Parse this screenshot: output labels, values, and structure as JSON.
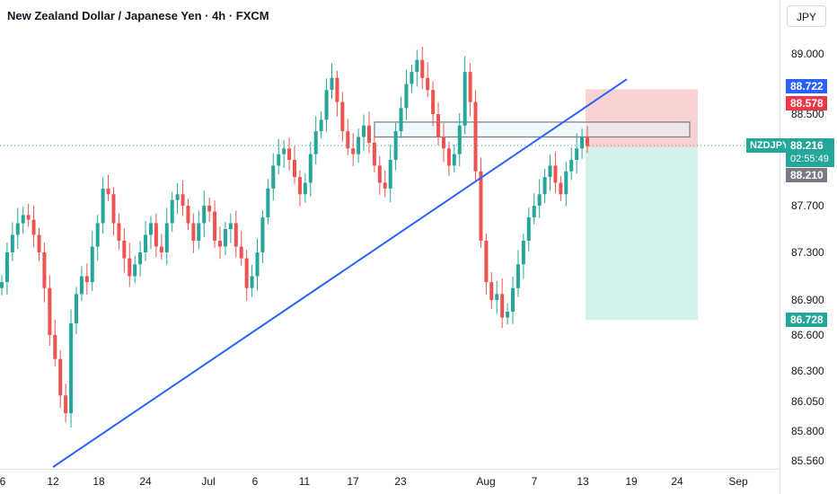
{
  "header": {
    "title": "New Zealand Dollar / Japanese Yen · 4h · FXCM"
  },
  "price_axis": {
    "currency": "JPY",
    "ticks": [
      "89.000",
      "88.500",
      "87.700",
      "87.300",
      "86.900",
      "86.600",
      "86.300",
      "86.050",
      "85.800",
      "85.560"
    ]
  },
  "time_axis": {
    "ticks": [
      "6",
      "12",
      "18",
      "24",
      "Jul",
      "6",
      "11",
      "17",
      "23",
      "Aug",
      "7",
      "13",
      "19",
      "24",
      "Sep"
    ]
  },
  "labels": {
    "symbol": "NZDJPY",
    "current_price": "88.216",
    "countdown": "02:55:49",
    "stop_price": "88.722",
    "entry_high": "88.578",
    "entry_price": "88.210",
    "target_price": "86.728"
  },
  "colors": {
    "up": "#26a69a",
    "down": "#ef5350",
    "trendline": "#2962ff",
    "risk_zone": "#f7c3c3",
    "reward_zone": "#cdeee8",
    "blue_badge": "#2962ff",
    "red_badge": "#f23645",
    "gray_badge": "#787b86"
  },
  "chart_data": {
    "type": "candlestick",
    "symbol": "NZDJPY",
    "timeframe": "4h",
    "y_scale": "log",
    "ylim": [
      85.5,
      89.4
    ],
    "close_series": [
      87.05,
      87.3,
      87.45,
      87.55,
      87.62,
      87.58,
      87.45,
      87.3,
      87.0,
      86.6,
      86.4,
      86.1,
      85.95,
      86.7,
      86.95,
      87.1,
      87.05,
      87.35,
      87.55,
      87.85,
      87.8,
      87.55,
      87.4,
      87.25,
      87.1,
      87.2,
      87.3,
      87.45,
      87.55,
      87.35,
      87.3,
      87.55,
      87.75,
      87.8,
      87.7,
      87.55,
      87.4,
      87.55,
      87.7,
      87.65,
      87.4,
      87.35,
      87.5,
      87.55,
      87.35,
      87.25,
      87.0,
      87.1,
      87.3,
      87.6,
      87.85,
      88.05,
      88.15,
      88.2,
      88.1,
      87.95,
      87.8,
      87.9,
      88.15,
      88.35,
      88.45,
      88.7,
      88.8,
      88.6,
      88.35,
      88.2,
      88.15,
      88.3,
      88.4,
      88.25,
      88.05,
      87.9,
      87.85,
      88.1,
      88.35,
      88.55,
      88.75,
      88.85,
      88.95,
      88.8,
      88.7,
      88.5,
      88.3,
      88.2,
      88.05,
      88.15,
      88.4,
      88.85,
      88.6,
      88.0,
      87.4,
      87.05,
      86.9,
      86.95,
      86.75,
      86.8,
      87.0,
      87.2,
      87.4,
      87.6,
      87.7,
      87.8,
      87.95,
      88.05,
      87.9,
      87.8,
      88.0,
      88.1,
      88.2,
      88.3,
      88.22
    ],
    "last_price": 88.216,
    "trendline": {
      "from_date": "Jun 12",
      "from_price": 85.56,
      "to_date": "Aug 18",
      "to_price": 88.7
    },
    "resistance_zone": {
      "from_date": "Jul 20",
      "to_date": "Aug 26",
      "low": 88.3,
      "high": 88.43
    },
    "position": {
      "type": "short",
      "entry": 88.21,
      "stop": 88.722,
      "target": 86.728,
      "from_date": "Aug 13",
      "to_date": "Aug 26"
    },
    "xlabel": "",
    "ylabel": ""
  }
}
